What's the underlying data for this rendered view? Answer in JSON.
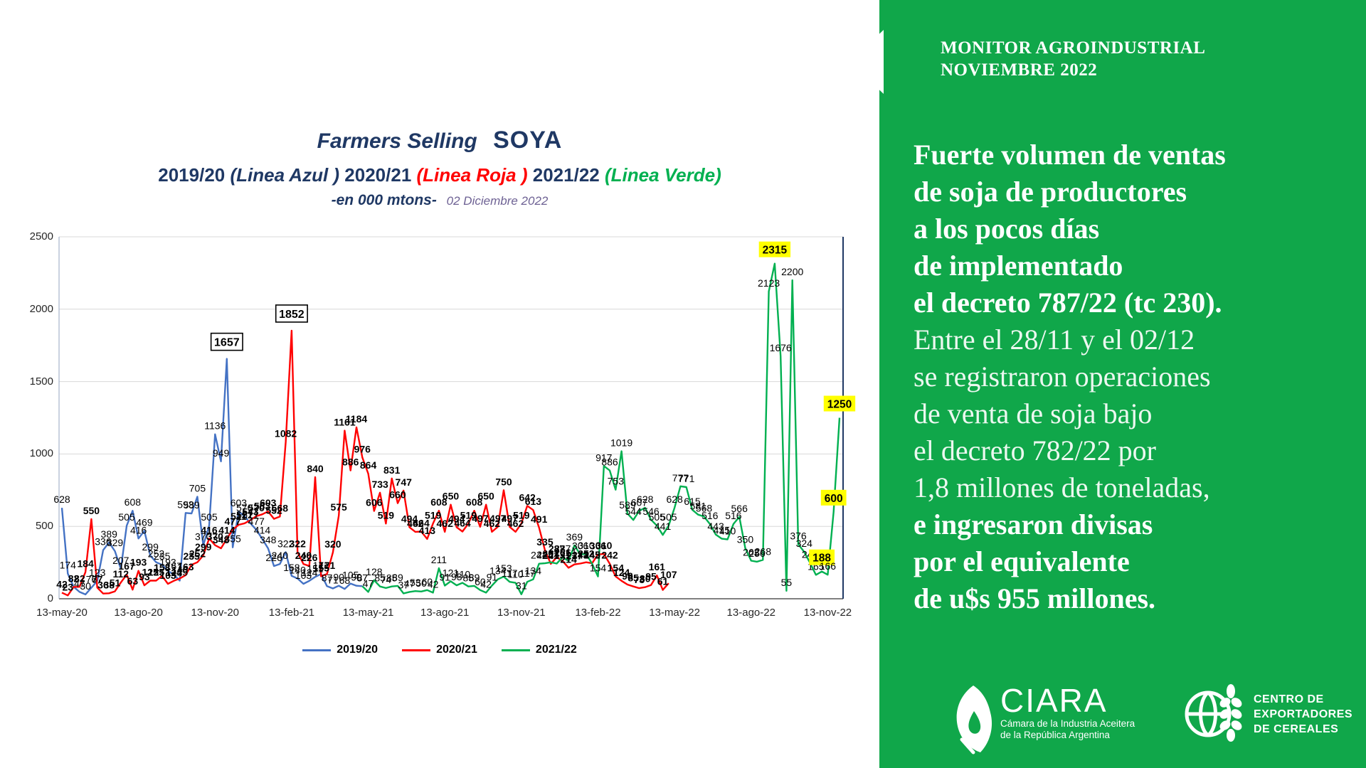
{
  "header": {
    "title_italic": "Farmers Selling",
    "title_product": "SOYA",
    "season1": "2019/20",
    "season1_note": "(Linea Azul  )",
    "season2": "2020/21",
    "season2_note": "(Linea Roja )",
    "season3": "2021/22",
    "season3_note": "(Linea Verde)",
    "units_note": "-en 000 mtons-",
    "date_note": "02 Diciembre   2022"
  },
  "side_panel": {
    "accent_color": "#10A74A",
    "heading_line1": "MONITOR AGROINDUSTRIAL",
    "heading_line2": "NOVIEMBRE 2022",
    "paragraph_lines": [
      {
        "text": "Fuerte volumen de ventas",
        "style": "bold"
      },
      {
        "text": "de soja de productores",
        "style": "bold"
      },
      {
        "text": "a los pocos días",
        "style": "bold"
      },
      {
        "text": "de implementado",
        "style": "bold"
      },
      {
        "text": "el decreto 787/22 (tc 230).",
        "style": "bold"
      },
      {
        "text": "Entre el 28/11 y el 02/12",
        "style": "light"
      },
      {
        "text": "se registraron operaciones",
        "style": "light"
      },
      {
        "text": "de venta de soja bajo",
        "style": "light"
      },
      {
        "text": "el decreto 782/22 por",
        "style": "light"
      },
      {
        "text": "1,8 millones de toneladas,",
        "style": "light"
      },
      {
        "text": "e ingresaron divisas",
        "style": "bold"
      },
      {
        "text": "por el equivalente",
        "style": "bold"
      },
      {
        "text": "de u$s 955 millones.",
        "style": "bold"
      }
    ],
    "logo_ciara": {
      "name": "CIARA",
      "tagline_line1": "Cámara de la Industria Aceitera",
      "tagline_line2": "de la República Argentina"
    },
    "logo_cec": {
      "line1": "CENTRO DE",
      "line2": "EXPORTADORES",
      "line3": "DE CEREALES"
    }
  },
  "chart_data": {
    "type": "line",
    "title": "Farmers Selling SOYA",
    "ylabel": "000 mtons",
    "ylim": [
      0,
      2500
    ],
    "ytick_step": 500,
    "grid": true,
    "legend_position": "bottom",
    "x_tick_labels": [
      "13-may-20",
      "13-ago-20",
      "13-nov-20",
      "13-feb-21",
      "13-may-21",
      "13-ago-21",
      "13-nov-21",
      "13-feb-22",
      "13-may-22",
      "13-ago-22",
      "13-nov-22"
    ],
    "weeks_per_tick": 13,
    "series": [
      {
        "name": "2019/20",
        "color": "#4472C4",
        "label_weight": "normal",
        "start_week": 0,
        "values": [
          628,
          174,
          82,
          47,
          30,
          76,
          123,
          336,
          389,
          329,
          207,
          505,
          608,
          416,
          469,
          299,
          252,
          235,
          193,
          167,
          125,
          593,
          589,
          705,
          370,
          505,
          1136,
          949,
          1657,
          355,
          603,
          570,
          521,
          477,
          414,
          348,
          226,
          240,
          322,
          158,
          140,
          103,
          124,
          151,
          171,
          87,
          71,
          90,
          68,
          105,
          90,
          87
        ]
      },
      {
        "name": "2020/21",
        "color": "#FF0000",
        "label_weight": "bold",
        "start_week": 0,
        "values": [
          42,
          23,
          82,
          82,
          184,
          550,
          77,
          36,
          38,
          51,
          112,
          167,
          63,
          193,
          93,
          125,
          125,
          158,
          103,
          124,
          140,
          163,
          235,
          252,
          299,
          416,
          370,
          348,
          414,
          477,
          511,
          521,
          543,
          570,
          583,
          603,
          552,
          568,
          1082,
          1852,
          322,
          240,
          226,
          840,
          155,
          171,
          320,
          575,
          1161,
          886,
          1184,
          976,
          864,
          606,
          733,
          519,
          831,
          660,
          747,
          494,
          462,
          464,
          413,
          519,
          608,
          462,
          650,
          494,
          464,
          519,
          608,
          497,
          650,
          462,
          497,
          750,
          497,
          462,
          519,
          642,
          613,
          491,
          335,
          241,
          287,
          261,
          214,
          237,
          243,
          252,
          245,
          306,
          310,
          242,
          154,
          124,
          98,
          85,
          73,
          80,
          95,
          161,
          61,
          107
        ]
      },
      {
        "name": "2021/22",
        "color": "#00B050",
        "label_weight": "normal",
        "start_week": 51,
        "values": [
          87,
          47,
          128,
          85,
          74,
          85,
          89,
          37,
          47,
          53,
          50,
          60,
          42,
          211,
          91,
          121,
          93,
          110,
          85,
          89,
          60,
          42,
          91,
          134,
          153,
          117,
          110,
          31,
          117,
          134,
          242,
          245,
          252,
          243,
          287,
          261,
          369,
          306,
          310,
          242,
          154,
          917,
          886,
          753,
          1019,
          589,
          544,
          607,
          628,
          546,
          505,
          441,
          505,
          628,
          777,
          771,
          615,
          581,
          568,
          516,
          443,
          415,
          410,
          516,
          566,
          350,
          263,
          256,
          268,
          2123,
          2315,
          1676,
          55,
          2200,
          376,
          324,
          248,
          165,
          188,
          166,
          600,
          1250
        ]
      }
    ],
    "boxed_labels": [
      1657,
      1852
    ],
    "highlighted_labels": [
      2315,
      1250,
      600,
      188
    ],
    "highlight_color": "#FFFF00"
  },
  "layout_colors": {
    "grid": "#D8D8D8",
    "axis_bottom": "#808080",
    "plot_border_right": "#1F3864",
    "navy_text": "#1F3864"
  }
}
